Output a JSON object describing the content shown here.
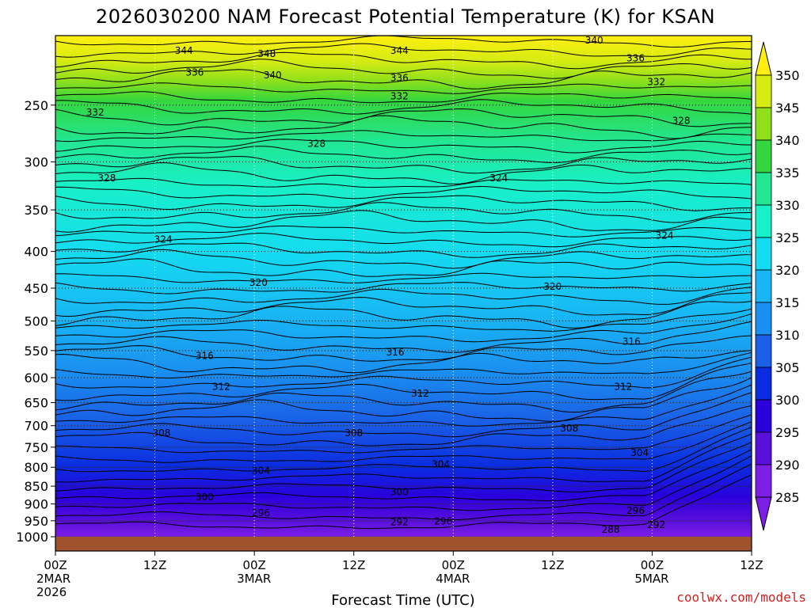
{
  "chart_data": {
    "type": "heatmap",
    "title": "2026030200 NAM Forecast Potential Temperature (K) for KSAN",
    "xlabel": "Forecast Time (UTC)",
    "ylabel": "",
    "credit": "coolwx.com/models",
    "x_range_hours": [
      0,
      84
    ],
    "y_range_hpa": [
      1000,
      200
    ],
    "y_scale": "log",
    "x_ticks": [
      {
        "hour": 0,
        "label": "00Z",
        "date": "2MAR",
        "year": "2026"
      },
      {
        "hour": 12,
        "label": "12Z",
        "date": "",
        "year": ""
      },
      {
        "hour": 24,
        "label": "00Z",
        "date": "3MAR",
        "year": ""
      },
      {
        "hour": 36,
        "label": "12Z",
        "date": "",
        "year": ""
      },
      {
        "hour": 48,
        "label": "00Z",
        "date": "4MAR",
        "year": ""
      },
      {
        "hour": 60,
        "label": "12Z",
        "date": "",
        "year": ""
      },
      {
        "hour": 72,
        "label": "00Z",
        "date": "5MAR",
        "year": ""
      },
      {
        "hour": 84,
        "label": "12Z",
        "date": "",
        "year": ""
      }
    ],
    "y_ticks": [
      250,
      300,
      350,
      400,
      450,
      500,
      550,
      600,
      650,
      700,
      750,
      800,
      850,
      900,
      950,
      1000
    ],
    "grid": true,
    "colorbar": {
      "min": 285,
      "max": 350,
      "levels": [
        285,
        290,
        295,
        300,
        305,
        310,
        315,
        320,
        325,
        330,
        335,
        340,
        345,
        350
      ],
      "colors": [
        "#7d1ee6",
        "#5a0fdc",
        "#2b00dc",
        "#0a2ce0",
        "#1a5fe6",
        "#1a8ff0",
        "#18b6f5",
        "#14dcf0",
        "#18f0c8",
        "#22e691",
        "#33d63e",
        "#8fe01a",
        "#d6ec12",
        "#ffee10"
      ],
      "extend": "both",
      "placement": "right"
    },
    "contour_labels": [
      {
        "value": "344",
        "hour": 15.5,
        "p": 210
      },
      {
        "value": "348",
        "hour": 25.5,
        "p": 212
      },
      {
        "value": "344",
        "hour": 41.5,
        "p": 210
      },
      {
        "value": "340",
        "hour": 65,
        "p": 203
      },
      {
        "value": "336",
        "hour": 70,
        "p": 215
      },
      {
        "value": "336",
        "hour": 16.8,
        "p": 225
      },
      {
        "value": "340",
        "hour": 26.2,
        "p": 227
      },
      {
        "value": "336",
        "hour": 41.5,
        "p": 229
      },
      {
        "value": "332",
        "hour": 72.5,
        "p": 232
      },
      {
        "value": "332",
        "hour": 4.8,
        "p": 256
      },
      {
        "value": "332",
        "hour": 41.5,
        "p": 243
      },
      {
        "value": "328",
        "hour": 75.5,
        "p": 263
      },
      {
        "value": "328",
        "hour": 31.5,
        "p": 283
      },
      {
        "value": "328",
        "hour": 6.2,
        "p": 316
      },
      {
        "value": "324",
        "hour": 53.5,
        "p": 316
      },
      {
        "value": "324",
        "hour": 13,
        "p": 385
      },
      {
        "value": "324",
        "hour": 73.5,
        "p": 380
      },
      {
        "value": "320",
        "hour": 24.5,
        "p": 442
      },
      {
        "value": "320",
        "hour": 60,
        "p": 448
      },
      {
        "value": "316",
        "hour": 18,
        "p": 559
      },
      {
        "value": "316",
        "hour": 41,
        "p": 553
      },
      {
        "value": "316",
        "hour": 69.5,
        "p": 534
      },
      {
        "value": "312",
        "hour": 20,
        "p": 618
      },
      {
        "value": "312",
        "hour": 44,
        "p": 631
      },
      {
        "value": "312",
        "hour": 68.5,
        "p": 618
      },
      {
        "value": "308",
        "hour": 12.8,
        "p": 717
      },
      {
        "value": "308",
        "hour": 36,
        "p": 717
      },
      {
        "value": "308",
        "hour": 62,
        "p": 706
      },
      {
        "value": "304",
        "hour": 24.8,
        "p": 809
      },
      {
        "value": "304",
        "hour": 46.5,
        "p": 792
      },
      {
        "value": "304",
        "hour": 70.5,
        "p": 764
      },
      {
        "value": "300",
        "hour": 18,
        "p": 881
      },
      {
        "value": "300",
        "hour": 41.5,
        "p": 866
      },
      {
        "value": "296",
        "hour": 24.8,
        "p": 926
      },
      {
        "value": "296",
        "hour": 46.8,
        "p": 952
      },
      {
        "value": "296",
        "hour": 70,
        "p": 920
      },
      {
        "value": "292",
        "hour": 41.5,
        "p": 954
      },
      {
        "value": "292",
        "hour": 72.5,
        "p": 962
      },
      {
        "value": "288",
        "hour": 67,
        "p": 977
      }
    ],
    "note_shapes": "ground strip drawn below 1000 hPa"
  }
}
